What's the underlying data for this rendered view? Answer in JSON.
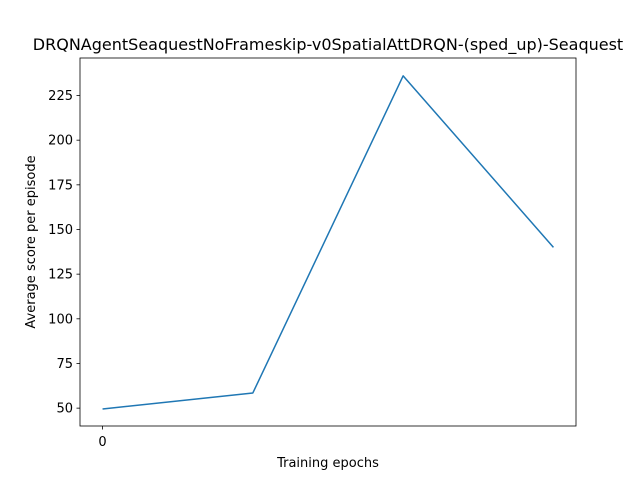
{
  "chart_data": {
    "type": "line",
    "title": "DRQNAgentSeaquestNoFrameskip-v0SpatialAttDRQN-(sped_up)-Seaquest",
    "xlabel": "Training epochs",
    "ylabel": "Average score per episode",
    "x": [
      0,
      1,
      2,
      3
    ],
    "x_ticks": [
      0
    ],
    "x_tick_labels": [
      "0"
    ],
    "xlim": [
      -0.15,
      3.15
    ],
    "ylim": [
      40,
      246
    ],
    "y_ticks": [
      50,
      75,
      100,
      125,
      150,
      175,
      200,
      225
    ],
    "y_tick_labels": [
      "50",
      "75",
      "100",
      "125",
      "150",
      "175",
      "200",
      "225"
    ],
    "series": [
      {
        "values": [
          49.5,
          58.5,
          236,
          140
        ],
        "color": "#1f77b4"
      }
    ],
    "grid": false,
    "legend": "none"
  }
}
